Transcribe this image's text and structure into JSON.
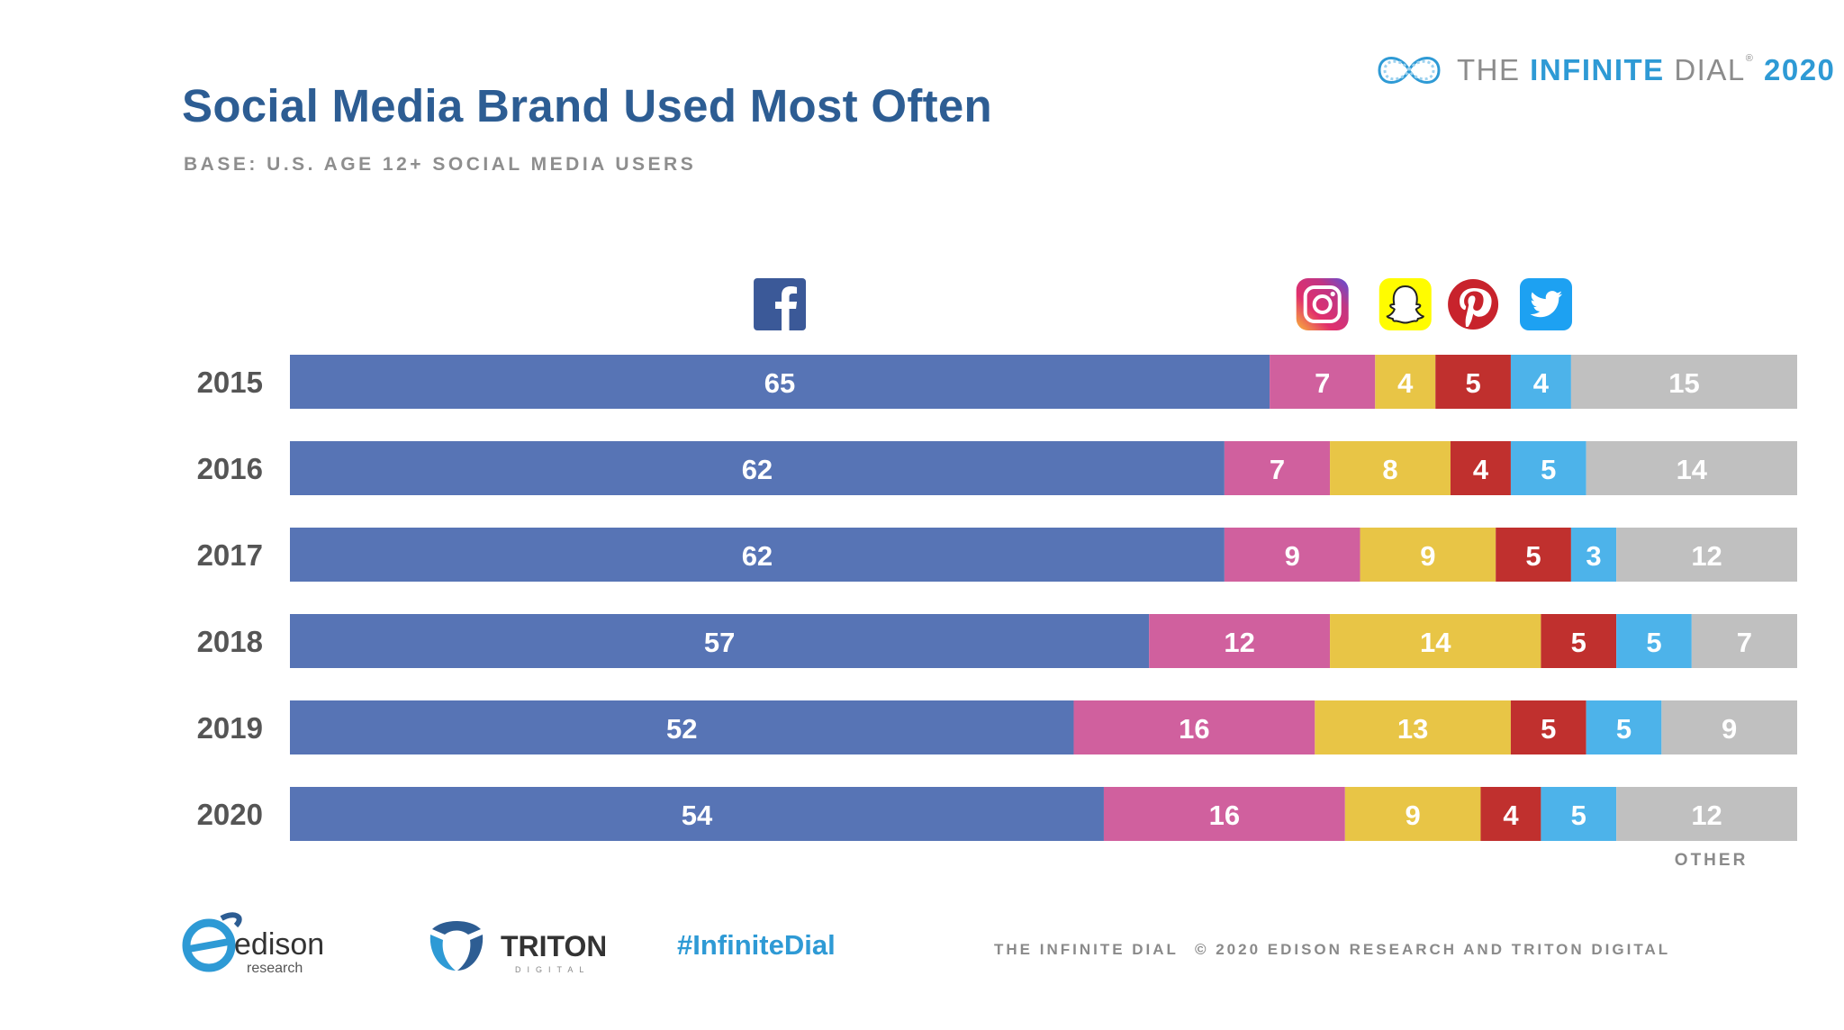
{
  "header": {
    "title": "Social Media Brand Used Most Often",
    "subtitle": "BASE: U.S. AGE 12+ SOCIAL MEDIA USERS"
  },
  "brand": {
    "prefix": "THE ",
    "bold": "INFINITE",
    "suffix": " DIAL",
    "registered": "®",
    "year": "2020"
  },
  "footer": {
    "hashtag": "#InfiniteDial",
    "study": "THE INFINITE DIAL",
    "copyright": "© 2020 EDISON RESEARCH AND TRITON DIGITAL",
    "edison_word": "edison",
    "edison_sub": "research",
    "triton_word": "TRITON",
    "triton_sub": "DIGITAL"
  },
  "chart_data": {
    "type": "bar",
    "orientation": "horizontal",
    "stacked": true,
    "title": "Social Media Brand Used Most Often",
    "subtitle": "BASE: U.S. AGE 12+ SOCIAL MEDIA USERS",
    "categories": [
      "2015",
      "2016",
      "2017",
      "2018",
      "2019",
      "2020"
    ],
    "xlim": [
      0,
      100
    ],
    "series": [
      {
        "name": "Facebook",
        "icon": "facebook-icon",
        "color": "#5774b5",
        "values": [
          65,
          62,
          62,
          57,
          52,
          54
        ]
      },
      {
        "name": "Instagram",
        "icon": "instagram-icon",
        "color": "#d0609e",
        "values": [
          7,
          7,
          9,
          12,
          16,
          16
        ]
      },
      {
        "name": "Snapchat",
        "icon": "snapchat-icon",
        "color": "#e8c546",
        "values": [
          4,
          8,
          9,
          14,
          13,
          9
        ]
      },
      {
        "name": "Pinterest",
        "icon": "pinterest-icon",
        "color": "#c0302e",
        "values": [
          5,
          4,
          5,
          5,
          5,
          4
        ]
      },
      {
        "name": "Twitter",
        "icon": "twitter-icon",
        "color": "#4db3ea",
        "values": [
          4,
          5,
          3,
          5,
          5,
          5
        ]
      },
      {
        "name": "OTHER",
        "icon": null,
        "color": "#c0c0c0",
        "values": [
          15,
          14,
          12,
          7,
          9,
          12
        ]
      }
    ],
    "other_label": "OTHER",
    "year_label_color": "#555555",
    "value_label_color": "#ffffff"
  }
}
